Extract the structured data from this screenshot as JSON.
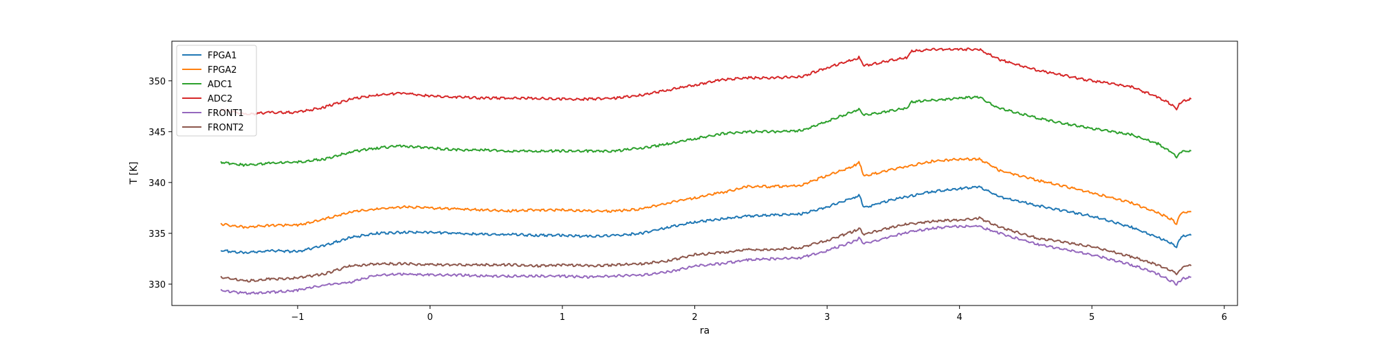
{
  "chart_data": {
    "type": "line",
    "title": "",
    "xlabel": "ra",
    "ylabel": "T [K]",
    "xlim": [
      -1.95,
      6.1
    ],
    "ylim": [
      327.9,
      353.9
    ],
    "xticks": [
      -1,
      0,
      1,
      2,
      3,
      4,
      5,
      6
    ],
    "xtick_labels": [
      "−1",
      "0",
      "1",
      "2",
      "3",
      "4",
      "5",
      "6"
    ],
    "yticks": [
      330,
      335,
      340,
      345,
      350
    ],
    "ytick_labels": [
      "330",
      "335",
      "340",
      "345",
      "350"
    ],
    "grid": false,
    "legend": {
      "placement": "top-left"
    },
    "series": [
      {
        "name": "FPGA1",
        "color": "#1f77b4",
        "x": [
          -1.58,
          -1.4,
          -1.2,
          -1.0,
          -0.8,
          -0.6,
          -0.4,
          -0.2,
          0.0,
          0.2,
          0.4,
          0.6,
          0.8,
          1.0,
          1.2,
          1.4,
          1.6,
          1.8,
          2.0,
          2.2,
          2.4,
          2.6,
          2.8,
          3.0,
          3.2,
          3.24,
          3.28,
          3.4,
          3.6,
          3.8,
          4.0,
          4.15,
          4.3,
          4.6,
          5.0,
          5.3,
          5.5,
          5.6,
          5.64,
          5.66,
          5.7,
          5.75
        ],
        "y": [
          333.3,
          333.1,
          333.3,
          333.2,
          333.8,
          334.6,
          335.0,
          335.1,
          335.1,
          335.0,
          334.9,
          334.9,
          334.8,
          334.8,
          334.7,
          334.8,
          335.0,
          335.6,
          336.1,
          336.4,
          336.7,
          336.8,
          336.9,
          337.6,
          338.5,
          338.8,
          337.5,
          338.0,
          338.6,
          339.1,
          339.4,
          339.6,
          338.6,
          337.7,
          336.7,
          335.6,
          334.6,
          334.0,
          333.6,
          334.4,
          334.8,
          334.8
        ]
      },
      {
        "name": "FPGA2",
        "color": "#ff7f0e",
        "x": [
          -1.58,
          -1.4,
          -1.2,
          -1.0,
          -0.8,
          -0.6,
          -0.4,
          -0.2,
          0.0,
          0.2,
          0.4,
          0.6,
          0.8,
          1.0,
          1.2,
          1.4,
          1.6,
          1.8,
          2.0,
          2.2,
          2.4,
          2.6,
          2.8,
          3.0,
          3.2,
          3.24,
          3.28,
          3.4,
          3.6,
          3.8,
          4.0,
          4.15,
          4.3,
          4.6,
          5.0,
          5.3,
          5.5,
          5.6,
          5.64,
          5.66,
          5.7,
          5.75
        ],
        "y": [
          335.9,
          335.6,
          335.8,
          335.8,
          336.4,
          337.1,
          337.4,
          337.6,
          337.5,
          337.4,
          337.3,
          337.2,
          337.3,
          337.3,
          337.2,
          337.2,
          337.4,
          338.0,
          338.5,
          339.0,
          339.6,
          339.6,
          339.7,
          340.7,
          341.6,
          342.0,
          340.6,
          341.0,
          341.6,
          342.1,
          342.3,
          342.3,
          341.2,
          340.2,
          339.0,
          338.0,
          337.0,
          336.4,
          335.9,
          336.8,
          337.1,
          337.1
        ]
      },
      {
        "name": "ADC1",
        "color": "#2ca02c",
        "x": [
          -1.58,
          -1.4,
          -1.2,
          -1.0,
          -0.8,
          -0.6,
          -0.4,
          -0.2,
          0.0,
          0.2,
          0.4,
          0.6,
          0.8,
          1.0,
          1.2,
          1.4,
          1.6,
          1.8,
          2.0,
          2.2,
          2.4,
          2.6,
          2.8,
          3.0,
          3.2,
          3.24,
          3.28,
          3.4,
          3.6,
          3.64,
          3.8,
          4.0,
          4.15,
          4.3,
          4.6,
          5.0,
          5.3,
          5.5,
          5.6,
          5.64,
          5.66,
          5.7,
          5.75
        ],
        "y": [
          342.0,
          341.7,
          341.9,
          342.0,
          342.3,
          343.0,
          343.4,
          343.6,
          343.4,
          343.2,
          343.2,
          343.1,
          343.1,
          343.1,
          343.1,
          343.1,
          343.4,
          343.8,
          344.3,
          344.8,
          345.0,
          345.0,
          345.1,
          346.0,
          347.0,
          347.2,
          346.6,
          346.9,
          347.3,
          347.9,
          348.1,
          348.3,
          348.4,
          347.3,
          346.3,
          345.3,
          344.7,
          343.8,
          343.0,
          342.5,
          342.9,
          343.1,
          343.1
        ]
      },
      {
        "name": "ADC2",
        "color": "#d62728",
        "x": [
          -1.58,
          -1.4,
          -1.2,
          -1.0,
          -0.8,
          -0.6,
          -0.4,
          -0.2,
          0.0,
          0.2,
          0.4,
          0.6,
          0.8,
          1.0,
          1.2,
          1.4,
          1.6,
          1.8,
          2.0,
          2.2,
          2.4,
          2.6,
          2.8,
          3.0,
          3.2,
          3.24,
          3.28,
          3.4,
          3.6,
          3.64,
          3.8,
          4.0,
          4.15,
          4.3,
          4.6,
          5.0,
          5.3,
          5.5,
          5.6,
          5.64,
          5.66,
          5.7,
          5.75
        ],
        "y": [
          347.2,
          346.7,
          346.9,
          346.9,
          347.4,
          348.2,
          348.6,
          348.8,
          348.5,
          348.4,
          348.3,
          348.3,
          348.3,
          348.2,
          348.2,
          348.3,
          348.6,
          349.1,
          349.6,
          350.1,
          350.3,
          350.3,
          350.4,
          351.3,
          352.1,
          352.3,
          351.5,
          351.8,
          352.3,
          352.9,
          353.1,
          353.1,
          353.1,
          352.1,
          351.0,
          350.0,
          349.4,
          348.4,
          347.7,
          347.2,
          347.8,
          348.1,
          348.2
        ]
      },
      {
        "name": "FRONT1",
        "color": "#9467bd",
        "x": [
          -1.58,
          -1.4,
          -1.2,
          -1.0,
          -0.8,
          -0.6,
          -0.4,
          -0.2,
          0.0,
          0.2,
          0.4,
          0.6,
          0.8,
          1.0,
          1.2,
          1.4,
          1.6,
          1.8,
          2.0,
          2.2,
          2.4,
          2.6,
          2.8,
          3.0,
          3.2,
          3.24,
          3.28,
          3.4,
          3.6,
          3.8,
          4.0,
          4.15,
          4.3,
          4.6,
          5.0,
          5.3,
          5.5,
          5.6,
          5.64,
          5.66,
          5.7,
          5.75
        ],
        "y": [
          329.4,
          329.1,
          329.2,
          329.4,
          329.9,
          330.2,
          330.9,
          331.0,
          330.9,
          330.9,
          330.8,
          330.8,
          330.8,
          330.8,
          330.7,
          330.8,
          330.9,
          331.2,
          331.8,
          332.0,
          332.4,
          332.5,
          332.6,
          333.3,
          334.2,
          334.5,
          334.0,
          334.4,
          335.1,
          335.5,
          335.7,
          335.7,
          335.0,
          333.9,
          332.9,
          331.9,
          331.0,
          330.3,
          330.0,
          330.3,
          330.6,
          330.7
        ]
      },
      {
        "name": "FRONT2",
        "color": "#8c564b",
        "x": [
          -1.58,
          -1.4,
          -1.2,
          -1.0,
          -0.8,
          -0.6,
          -0.4,
          -0.2,
          0.0,
          0.2,
          0.4,
          0.6,
          0.8,
          1.0,
          1.2,
          1.4,
          1.6,
          1.8,
          2.0,
          2.2,
          2.4,
          2.6,
          2.8,
          3.0,
          3.2,
          3.24,
          3.28,
          3.4,
          3.6,
          3.8,
          4.0,
          4.15,
          4.3,
          4.6,
          5.0,
          5.3,
          5.5,
          5.6,
          5.64,
          5.66,
          5.7,
          5.75
        ],
        "y": [
          330.7,
          330.3,
          330.5,
          330.6,
          331.0,
          331.8,
          332.0,
          332.0,
          331.9,
          331.9,
          331.9,
          331.9,
          331.8,
          331.9,
          331.8,
          331.9,
          332.0,
          332.3,
          332.9,
          333.1,
          333.4,
          333.4,
          333.6,
          334.3,
          335.2,
          335.5,
          334.9,
          335.3,
          335.9,
          336.2,
          336.3,
          336.5,
          335.6,
          334.5,
          333.7,
          332.7,
          331.9,
          331.3,
          331.0,
          331.4,
          331.8,
          331.8
        ]
      }
    ]
  }
}
